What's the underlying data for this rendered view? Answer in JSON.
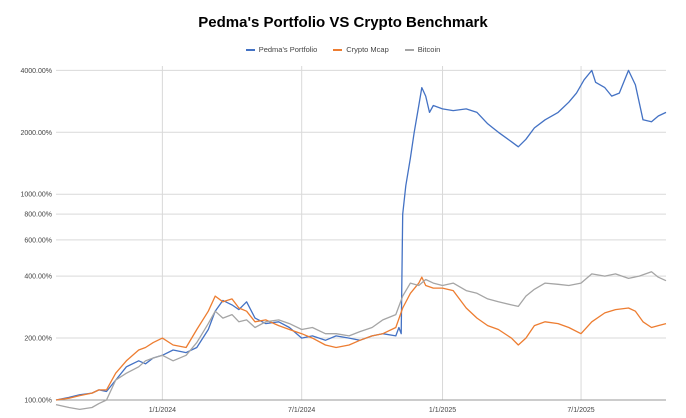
{
  "chart_data": {
    "type": "line",
    "title": "Pedma's Portfolio VS Crypto Benchmark",
    "xlabel": "",
    "ylabel": "",
    "y_scale": "log",
    "ylim": [
      100,
      4200
    ],
    "x_range": [
      "2023-08-15",
      "2025-10-20"
    ],
    "y_ticks": [
      {
        "value": 100,
        "label": "100.00%"
      },
      {
        "value": 200,
        "label": "200.00%"
      },
      {
        "value": 400,
        "label": "400.00%"
      },
      {
        "value": 600,
        "label": "600.00%"
      },
      {
        "value": 800,
        "label": "800.00%"
      },
      {
        "value": 1000,
        "label": "1000.00%"
      },
      {
        "value": 2000,
        "label": "2000.00%"
      },
      {
        "value": 4000,
        "label": "4000.00%"
      }
    ],
    "x_ticks": [
      {
        "value": "2024-01-01",
        "label": "1/1/2024"
      },
      {
        "value": "2024-07-01",
        "label": "7/1/2024"
      },
      {
        "value": "2025-01-01",
        "label": "1/1/2025"
      },
      {
        "value": "2025-07-01",
        "label": "7/1/2025"
      }
    ],
    "grid": true,
    "legend_position": "top",
    "series": [
      {
        "name": "Pedma's Portfolio",
        "color": "#4472C4",
        "points": [
          [
            "2023-08-15",
            100
          ],
          [
            "2023-09-01",
            103
          ],
          [
            "2023-09-15",
            106
          ],
          [
            "2023-10-01",
            108
          ],
          [
            "2023-10-10",
            112
          ],
          [
            "2023-10-20",
            110
          ],
          [
            "2023-11-01",
            125
          ],
          [
            "2023-11-15",
            145
          ],
          [
            "2023-12-01",
            155
          ],
          [
            "2023-12-10",
            150
          ],
          [
            "2023-12-20",
            160
          ],
          [
            "2024-01-01",
            165
          ],
          [
            "2024-01-15",
            175
          ],
          [
            "2024-02-01",
            170
          ],
          [
            "2024-02-15",
            180
          ],
          [
            "2024-03-01",
            220
          ],
          [
            "2024-03-10",
            270
          ],
          [
            "2024-03-20",
            305
          ],
          [
            "2024-04-01",
            290
          ],
          [
            "2024-04-10",
            275
          ],
          [
            "2024-04-20",
            300
          ],
          [
            "2024-05-01",
            250
          ],
          [
            "2024-05-15",
            235
          ],
          [
            "2024-06-01",
            240
          ],
          [
            "2024-06-15",
            225
          ],
          [
            "2024-07-01",
            200
          ],
          [
            "2024-07-15",
            205
          ],
          [
            "2024-08-01",
            195
          ],
          [
            "2024-08-15",
            205
          ],
          [
            "2024-09-01",
            200
          ],
          [
            "2024-09-15",
            195
          ],
          [
            "2024-10-01",
            205
          ],
          [
            "2024-10-15",
            210
          ],
          [
            "2024-11-01",
            205
          ],
          [
            "2024-11-05",
            225
          ],
          [
            "2024-11-08",
            210
          ],
          [
            "2024-11-10",
            800
          ],
          [
            "2024-11-14",
            1100
          ],
          [
            "2024-11-20",
            1500
          ],
          [
            "2024-11-25",
            2000
          ],
          [
            "2024-12-01",
            2700
          ],
          [
            "2024-12-05",
            3300
          ],
          [
            "2024-12-10",
            3000
          ],
          [
            "2024-12-15",
            2500
          ],
          [
            "2024-12-20",
            2700
          ],
          [
            "2025-01-01",
            2600
          ],
          [
            "2025-01-15",
            2550
          ],
          [
            "2025-02-01",
            2600
          ],
          [
            "2025-02-15",
            2500
          ],
          [
            "2025-03-01",
            2200
          ],
          [
            "2025-03-15",
            2000
          ],
          [
            "2025-04-01",
            1800
          ],
          [
            "2025-04-10",
            1700
          ],
          [
            "2025-04-20",
            1850
          ],
          [
            "2025-05-01",
            2100
          ],
          [
            "2025-05-15",
            2300
          ],
          [
            "2025-06-01",
            2500
          ],
          [
            "2025-06-15",
            2800
          ],
          [
            "2025-06-25",
            3100
          ],
          [
            "2025-07-05",
            3600
          ],
          [
            "2025-07-15",
            4000
          ],
          [
            "2025-07-20",
            3500
          ],
          [
            "2025-08-01",
            3300
          ],
          [
            "2025-08-10",
            3000
          ],
          [
            "2025-08-20",
            3100
          ],
          [
            "2025-09-01",
            4000
          ],
          [
            "2025-09-10",
            3400
          ],
          [
            "2025-09-20",
            2300
          ],
          [
            "2025-10-01",
            2250
          ],
          [
            "2025-10-10",
            2400
          ],
          [
            "2025-10-20",
            2500
          ]
        ]
      },
      {
        "name": "Crypto Mcap",
        "color": "#ED7D31",
        "points": [
          [
            "2023-08-15",
            100
          ],
          [
            "2023-09-01",
            102
          ],
          [
            "2023-09-15",
            105
          ],
          [
            "2023-10-01",
            108
          ],
          [
            "2023-10-10",
            112
          ],
          [
            "2023-10-20",
            112
          ],
          [
            "2023-11-01",
            135
          ],
          [
            "2023-11-15",
            155
          ],
          [
            "2023-12-01",
            175
          ],
          [
            "2023-12-10",
            180
          ],
          [
            "2023-12-20",
            190
          ],
          [
            "2024-01-01",
            200
          ],
          [
            "2024-01-15",
            185
          ],
          [
            "2024-02-01",
            180
          ],
          [
            "2024-02-15",
            220
          ],
          [
            "2024-03-01",
            270
          ],
          [
            "2024-03-10",
            320
          ],
          [
            "2024-03-20",
            300
          ],
          [
            "2024-04-01",
            310
          ],
          [
            "2024-04-10",
            280
          ],
          [
            "2024-04-20",
            270
          ],
          [
            "2024-05-01",
            240
          ],
          [
            "2024-05-15",
            245
          ],
          [
            "2024-06-01",
            230
          ],
          [
            "2024-06-15",
            220
          ],
          [
            "2024-07-01",
            210
          ],
          [
            "2024-07-15",
            200
          ],
          [
            "2024-08-01",
            185
          ],
          [
            "2024-08-15",
            180
          ],
          [
            "2024-09-01",
            185
          ],
          [
            "2024-09-15",
            195
          ],
          [
            "2024-10-01",
            205
          ],
          [
            "2024-10-15",
            210
          ],
          [
            "2024-11-01",
            225
          ],
          [
            "2024-11-10",
            280
          ],
          [
            "2024-11-20",
            330
          ],
          [
            "2024-12-01",
            370
          ],
          [
            "2024-12-05",
            395
          ],
          [
            "2024-12-10",
            360
          ],
          [
            "2024-12-20",
            350
          ],
          [
            "2025-01-01",
            350
          ],
          [
            "2025-01-15",
            340
          ],
          [
            "2025-02-01",
            280
          ],
          [
            "2025-02-15",
            250
          ],
          [
            "2025-03-01",
            230
          ],
          [
            "2025-03-15",
            220
          ],
          [
            "2025-04-01",
            200
          ],
          [
            "2025-04-10",
            185
          ],
          [
            "2025-04-20",
            200
          ],
          [
            "2025-05-01",
            230
          ],
          [
            "2025-05-15",
            240
          ],
          [
            "2025-06-01",
            235
          ],
          [
            "2025-06-15",
            225
          ],
          [
            "2025-07-01",
            210
          ],
          [
            "2025-07-15",
            240
          ],
          [
            "2025-08-01",
            265
          ],
          [
            "2025-08-15",
            275
          ],
          [
            "2025-09-01",
            280
          ],
          [
            "2025-09-10",
            270
          ],
          [
            "2025-09-20",
            240
          ],
          [
            "2025-10-01",
            225
          ],
          [
            "2025-10-10",
            230
          ],
          [
            "2025-10-20",
            235
          ]
        ]
      },
      {
        "name": "Bitcoin",
        "color": "#A5A5A5",
        "points": [
          [
            "2023-08-15",
            95
          ],
          [
            "2023-09-01",
            92
          ],
          [
            "2023-09-15",
            90
          ],
          [
            "2023-10-01",
            92
          ],
          [
            "2023-10-10",
            96
          ],
          [
            "2023-10-20",
            100
          ],
          [
            "2023-11-01",
            125
          ],
          [
            "2023-11-15",
            135
          ],
          [
            "2023-12-01",
            145
          ],
          [
            "2023-12-10",
            155
          ],
          [
            "2023-12-20",
            160
          ],
          [
            "2024-01-01",
            165
          ],
          [
            "2024-01-15",
            155
          ],
          [
            "2024-02-01",
            165
          ],
          [
            "2024-02-15",
            190
          ],
          [
            "2024-03-01",
            235
          ],
          [
            "2024-03-10",
            270
          ],
          [
            "2024-03-20",
            250
          ],
          [
            "2024-04-01",
            260
          ],
          [
            "2024-04-10",
            240
          ],
          [
            "2024-04-20",
            245
          ],
          [
            "2024-05-01",
            225
          ],
          [
            "2024-05-15",
            240
          ],
          [
            "2024-06-01",
            245
          ],
          [
            "2024-06-15",
            235
          ],
          [
            "2024-07-01",
            220
          ],
          [
            "2024-07-15",
            225
          ],
          [
            "2024-08-01",
            210
          ],
          [
            "2024-08-15",
            210
          ],
          [
            "2024-09-01",
            205
          ],
          [
            "2024-09-15",
            215
          ],
          [
            "2024-10-01",
            225
          ],
          [
            "2024-10-15",
            245
          ],
          [
            "2024-11-01",
            260
          ],
          [
            "2024-11-10",
            320
          ],
          [
            "2024-11-20",
            370
          ],
          [
            "2024-12-01",
            360
          ],
          [
            "2024-12-10",
            385
          ],
          [
            "2024-12-20",
            370
          ],
          [
            "2025-01-01",
            360
          ],
          [
            "2025-01-15",
            370
          ],
          [
            "2025-02-01",
            340
          ],
          [
            "2025-02-15",
            330
          ],
          [
            "2025-03-01",
            310
          ],
          [
            "2025-03-15",
            300
          ],
          [
            "2025-04-01",
            290
          ],
          [
            "2025-04-10",
            285
          ],
          [
            "2025-04-20",
            320
          ],
          [
            "2025-05-01",
            345
          ],
          [
            "2025-05-15",
            370
          ],
          [
            "2025-06-01",
            365
          ],
          [
            "2025-06-15",
            360
          ],
          [
            "2025-07-01",
            370
          ],
          [
            "2025-07-15",
            410
          ],
          [
            "2025-08-01",
            400
          ],
          [
            "2025-08-15",
            410
          ],
          [
            "2025-09-01",
            390
          ],
          [
            "2025-09-15",
            400
          ],
          [
            "2025-10-01",
            420
          ],
          [
            "2025-10-10",
            395
          ],
          [
            "2025-10-20",
            380
          ]
        ]
      }
    ]
  }
}
